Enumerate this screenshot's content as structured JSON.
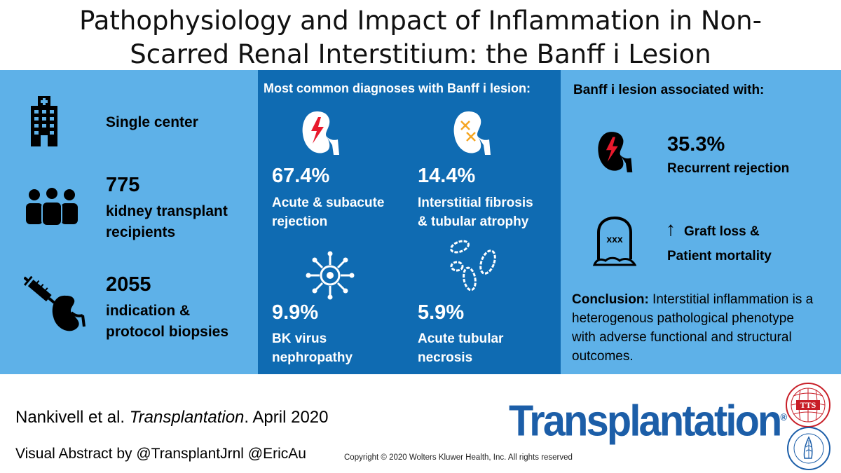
{
  "title": {
    "line1": "Pathophysiology and Impact of Inflammation in Non-",
    "line2": "Scarred Renal Interstitium: the Banff i Lesion"
  },
  "left_panel": {
    "items": [
      {
        "icon": "hospital-icon",
        "heading": "",
        "text": "Single center"
      },
      {
        "icon": "people-group-icon",
        "heading": "775",
        "text_line1": "kidney transplant",
        "text_line2": "recipients"
      },
      {
        "icon": "syringe-kidney-icon",
        "heading": "2055",
        "text_line1": "indication &",
        "text_line2": "protocol biopsies"
      }
    ]
  },
  "middle_panel": {
    "heading": "Most common diagnoses with Banff i lesion:",
    "diagnoses": [
      {
        "icon": "kidney-lightning-icon",
        "percent": "67.4%",
        "line1": "Acute & subacute",
        "line2": "rejection"
      },
      {
        "icon": "kidney-fibrosis-icon",
        "percent": "14.4%",
        "line1": "Interstitial fibrosis",
        "line2": "& tubular atrophy"
      },
      {
        "icon": "virus-icon",
        "percent": "9.9%",
        "line1": "BK virus",
        "line2": "nephropathy"
      },
      {
        "icon": "tubules-icon",
        "percent": "5.9%",
        "line1": "Acute tubular",
        "line2": "necrosis"
      }
    ]
  },
  "right_panel": {
    "heading": "Banff i lesion associated with:",
    "rejection_percent": "35.3%",
    "rejection_label": "Recurrent rejection",
    "arrow": "↑",
    "graft_loss": "Graft loss &",
    "mortality": "Patient mortality",
    "tombstone_text": "xxx",
    "conclusion_label": "Conclusion:",
    "conclusion_line1": " Interstitial inflammation is a",
    "conclusion_line2": "heterogenous pathological phenotype",
    "conclusion_line3": "with adverse functional and structural",
    "conclusion_line4": "outcomes."
  },
  "footer": {
    "citation_authors": "Nankivell et al. ",
    "citation_journal": "Transplantation",
    "citation_date": ". April 2020",
    "visual_abstract": "Visual Abstract by @TransplantJrnl @EricAu",
    "copyright": "Copyright © 2020  Wolters Kluwer Health, Inc. All rights reserved",
    "brand": "Transplantation",
    "brand_mark": "®",
    "logo_top_text": "TTS",
    "logo_bottom_text": "THE TRANSPLANTATION SOCIETY"
  },
  "colors": {
    "light_blue": "#5eb1e8",
    "dark_blue": "#0f6bb2",
    "brand_blue": "#1c5ea8",
    "kidney_red": "#e8192c",
    "fibrosis_orange": "#f5a623",
    "logo_red": "#c81e27"
  }
}
